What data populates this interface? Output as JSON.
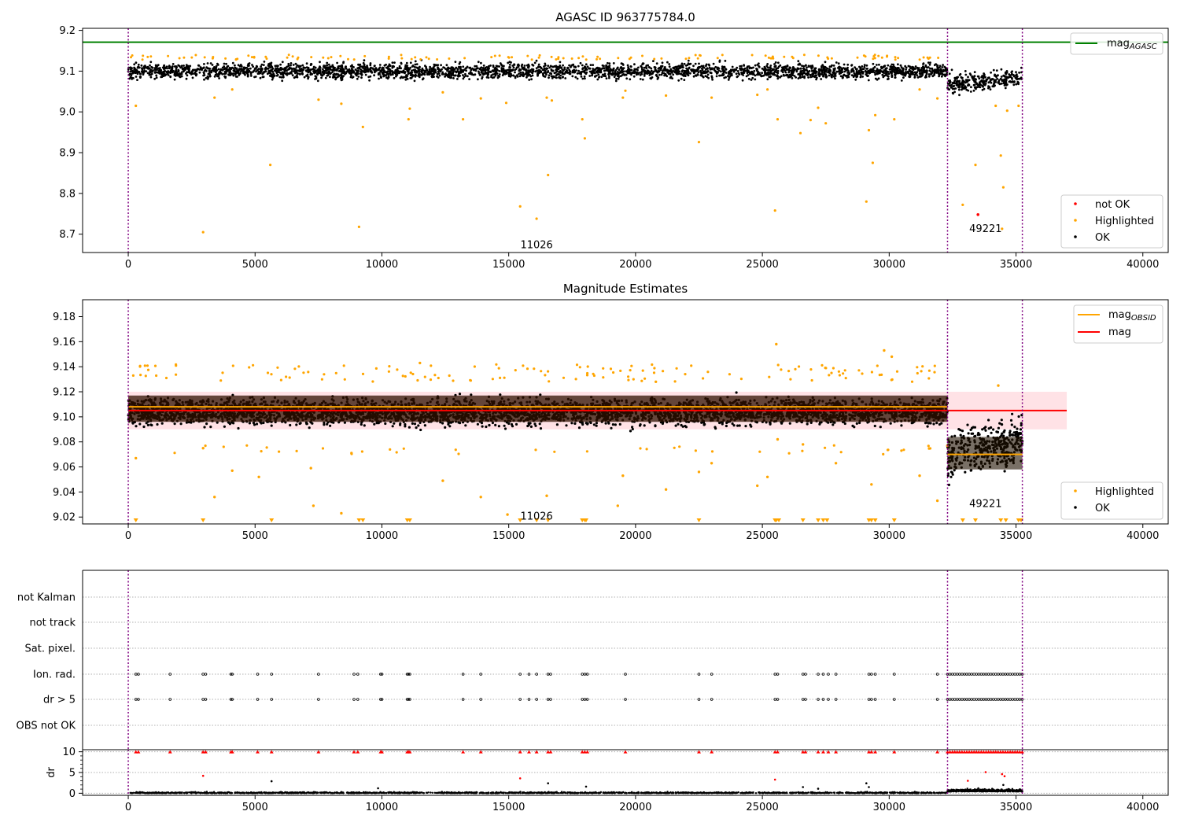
{
  "chart_data": [
    {
      "type": "scatter",
      "title": "AGASC ID 963775784.0",
      "xlim": [
        -1800,
        41000
      ],
      "ylim": [
        8.655,
        9.205
      ],
      "xticks": [
        "0",
        "5000",
        "10000",
        "15000",
        "20000",
        "25000",
        "30000",
        "35000",
        "40000"
      ],
      "yticks": [
        "8.7",
        "8.8",
        "8.9",
        "9.0",
        "9.1",
        "9.2"
      ],
      "obs_boundaries": [
        0,
        32300,
        35250
      ],
      "obs_labels": [
        {
          "text": "11026",
          "x": 16100,
          "y": 8.675
        },
        {
          "text": "49221",
          "x": 33800,
          "y": 8.715
        }
      ],
      "reference_lines": [
        {
          "name": "mag",
          "sub": "AGASC",
          "y": 9.171,
          "x_range": [
            -1800,
            41000
          ],
          "color": "#008000"
        }
      ],
      "series": [
        {
          "name": "not OK",
          "color": "#ff0000",
          "points": [
            [
              33500,
              8.748
            ]
          ]
        },
        {
          "name": "Highlighted",
          "color": "#ffa500",
          "points": [
            [
              300,
              9.015
            ],
            [
              2950,
              8.705
            ],
            [
              3400,
              9.035
            ],
            [
              4100,
              9.055
            ],
            [
              5600,
              8.87
            ],
            [
              7500,
              9.03
            ],
            [
              8400,
              9.02
            ],
            [
              9100,
              8.718
            ],
            [
              9250,
              8.963
            ],
            [
              11050,
              8.982
            ],
            [
              11100,
              9.008
            ],
            [
              12400,
              9.048
            ],
            [
              13200,
              8.982
            ],
            [
              13900,
              9.033
            ],
            [
              14900,
              9.022
            ],
            [
              15450,
              8.768
            ],
            [
              16100,
              8.738
            ],
            [
              16500,
              9.035
            ],
            [
              16550,
              8.845
            ],
            [
              16700,
              9.028
            ],
            [
              17900,
              8.982
            ],
            [
              18000,
              8.935
            ],
            [
              19500,
              9.035
            ],
            [
              19600,
              9.052
            ],
            [
              21200,
              9.04
            ],
            [
              22500,
              8.926
            ],
            [
              25500,
              8.758
            ],
            [
              25600,
              8.982
            ],
            [
              26500,
              8.948
            ],
            [
              26900,
              8.98
            ],
            [
              27200,
              9.01
            ],
            [
              27500,
              8.972
            ],
            [
              29100,
              8.78
            ],
            [
              29200,
              8.955
            ],
            [
              29350,
              8.875
            ],
            [
              29450,
              8.992
            ],
            [
              30200,
              8.982
            ],
            [
              31200,
              9.055
            ],
            [
              31900,
              9.033
            ],
            [
              32900,
              8.772
            ],
            [
              33400,
              8.87
            ],
            [
              34200,
              9.015
            ],
            [
              34400,
              8.893
            ],
            [
              34500,
              8.815
            ],
            [
              34650,
              9.003
            ],
            [
              34450,
              8.713
            ],
            [
              35100,
              9.015
            ],
            [
              25200,
              9.055
            ],
            [
              24800,
              9.042
            ],
            [
              23000,
              9.035
            ]
          ]
        },
        {
          "name": "OK",
          "color": "#000000",
          "points": []
        }
      ],
      "ok_bands": [
        {
          "x": [
            0,
            32300
          ],
          "center": 9.1,
          "spread": 0.018
        },
        {
          "x": [
            32300,
            35250
          ],
          "center": 9.07,
          "spread": 0.022
        }
      ],
      "legend": {
        "entries": [
          {
            "name": "not OK",
            "color": "#ff0000"
          },
          {
            "name": "Highlighted",
            "color": "#ffa500"
          },
          {
            "name": "OK",
            "color": "#000000"
          }
        ],
        "position": "lower right"
      }
    },
    {
      "type": "scatter",
      "title": "Magnitude Estimates",
      "xlim": [
        -1800,
        41000
      ],
      "ylim": [
        9.0145,
        9.1935
      ],
      "xticks": [
        "0",
        "5000",
        "10000",
        "15000",
        "20000",
        "25000",
        "30000",
        "35000",
        "40000"
      ],
      "yticks": [
        "9.02",
        "9.04",
        "9.06",
        "9.08",
        "9.10",
        "9.12",
        "9.14",
        "9.16",
        "9.18"
      ],
      "obs_boundaries": [
        0,
        32300,
        35250
      ],
      "obs_labels": [
        {
          "text": "11026",
          "x": 16100,
          "y": 9.021
        },
        {
          "text": "49221",
          "x": 33800,
          "y": 9.031
        }
      ],
      "band": {
        "y": [
          9.09,
          9.12
        ],
        "x": [
          0,
          37000
        ],
        "color": "#ffb6c1"
      },
      "reference_lines": [
        {
          "name": "mag",
          "y": 9.105,
          "x_range": [
            0,
            37000
          ],
          "color": "#ff0000"
        },
        {
          "name": "mag",
          "sub": "OBSID",
          "y": 9.108,
          "x_range": [
            0,
            32300
          ],
          "color": "#ffa500"
        },
        {
          "name": "mag",
          "sub": "OBSID",
          "y": 9.07,
          "x_range": [
            32300,
            35250
          ],
          "color": "#ffa500"
        }
      ],
      "series": [
        {
          "name": "Highlighted",
          "color": "#ffa500",
          "points": [
            [
              300,
              9.067
            ],
            [
              2950,
              9.075
            ],
            [
              3400,
              9.036
            ],
            [
              4100,
              9.057
            ],
            [
              5150,
              9.052
            ],
            [
              7200,
              9.059
            ],
            [
              7300,
              9.029
            ],
            [
              8400,
              9.023
            ],
            [
              8800,
              9.071
            ],
            [
              12400,
              9.049
            ],
            [
              13900,
              9.036
            ],
            [
              14950,
              9.022
            ],
            [
              16500,
              9.037
            ],
            [
              19300,
              9.029
            ],
            [
              19500,
              9.053
            ],
            [
              21200,
              9.042
            ],
            [
              22500,
              9.056
            ],
            [
              23000,
              9.063
            ],
            [
              24800,
              9.045
            ],
            [
              25200,
              9.052
            ],
            [
              25600,
              9.082
            ],
            [
              26600,
              9.078
            ],
            [
              27900,
              9.063
            ],
            [
              29300,
              9.046
            ],
            [
              31200,
              9.053
            ],
            [
              31900,
              9.033
            ],
            [
              25550,
              9.158
            ],
            [
              29800,
              9.153
            ],
            [
              34300,
              9.125
            ],
            [
              30100,
              9.148
            ],
            [
              20800,
              9.128
            ],
            [
              11500,
              9.143
            ]
          ]
        },
        {
          "name": "OK",
          "color": "#000000",
          "points": []
        }
      ],
      "ok_bands": [
        {
          "x": [
            0,
            32300
          ],
          "center": 9.104,
          "spread": 0.01
        },
        {
          "x": [
            32300,
            35250
          ],
          "center": 9.07,
          "spread": 0.018
        }
      ],
      "clipped_markers_x": [
        300,
        2950,
        5650,
        9100,
        9250,
        11000,
        11100,
        15450,
        16100,
        16550,
        17900,
        18000,
        18050,
        22500,
        25500,
        25550,
        25650,
        26600,
        27200,
        27400,
        27550,
        29200,
        29300,
        29450,
        30200,
        32900,
        33400,
        34400,
        34600,
        35100,
        35200
      ],
      "legend": {
        "entries": [
          {
            "name": "mag",
            "sub": "OBSID",
            "color": "#ffa500",
            "kind": "line"
          },
          {
            "name": "mag",
            "color": "#ff0000",
            "kind": "line"
          }
        ],
        "position": "upper right"
      },
      "legend2": {
        "entries": [
          {
            "name": "Highlighted",
            "color": "#ffa500"
          },
          {
            "name": "OK",
            "color": "#000000"
          }
        ],
        "position": "lower right"
      }
    },
    {
      "type": "scatter",
      "title": "",
      "xlim": [
        -1800,
        41000
      ],
      "flag_labels": [
        "not Kalman",
        "not track",
        "Sat. pixel.",
        "Ion. rad.",
        "dr > 5",
        "OBS not OK"
      ],
      "flag_x": [
        300,
        400,
        1650,
        2950,
        3050,
        4050,
        4100,
        5100,
        5650,
        7500,
        8900,
        9050,
        9950,
        10000,
        11000,
        11050,
        11100,
        13200,
        13900,
        15450,
        15800,
        16100,
        16550,
        16650,
        17900,
        18000,
        18100,
        19600,
        22500,
        23000,
        25500,
        25600,
        26600,
        26700,
        27200,
        27400,
        27600,
        27900,
        29200,
        29300,
        29450,
        30200,
        31900
      ],
      "flag_dense_x": [
        32300,
        35250
      ],
      "flagged_rows": [
        "Ion. rad.",
        "dr > 5"
      ]
    },
    {
      "type": "scatter",
      "title": "",
      "ylabel": "dr",
      "xlim": [
        -1800,
        41000
      ],
      "ylim": [
        -0.5,
        10.5
      ],
      "xticks": [
        "0",
        "5000",
        "10000",
        "15000",
        "20000",
        "25000",
        "30000",
        "35000",
        "40000"
      ],
      "yticks": [
        "0",
        "5",
        "10"
      ],
      "series": [
        {
          "name": "dr > 5 (clipped)",
          "color": "#ff0000",
          "points": []
        },
        {
          "name": "red",
          "color": "#ff0000",
          "points": [
            [
              2950,
              4.2
            ],
            [
              15450,
              3.6
            ],
            [
              25500,
              3.3
            ],
            [
              33100,
              3.0
            ],
            [
              33800,
              5.1
            ],
            [
              34450,
              4.6
            ],
            [
              34550,
              4.1
            ]
          ]
        },
        {
          "name": "black",
          "color": "#000000",
          "points": [
            [
              5650,
              2.9
            ],
            [
              16550,
              2.4
            ],
            [
              18050,
              1.6
            ],
            [
              29100,
              2.4
            ],
            [
              29200,
              1.5
            ],
            [
              9850,
              1.2
            ],
            [
              26600,
              1.5
            ],
            [
              27200,
              1.1
            ],
            [
              34500,
              2.0
            ]
          ]
        }
      ]
    }
  ]
}
